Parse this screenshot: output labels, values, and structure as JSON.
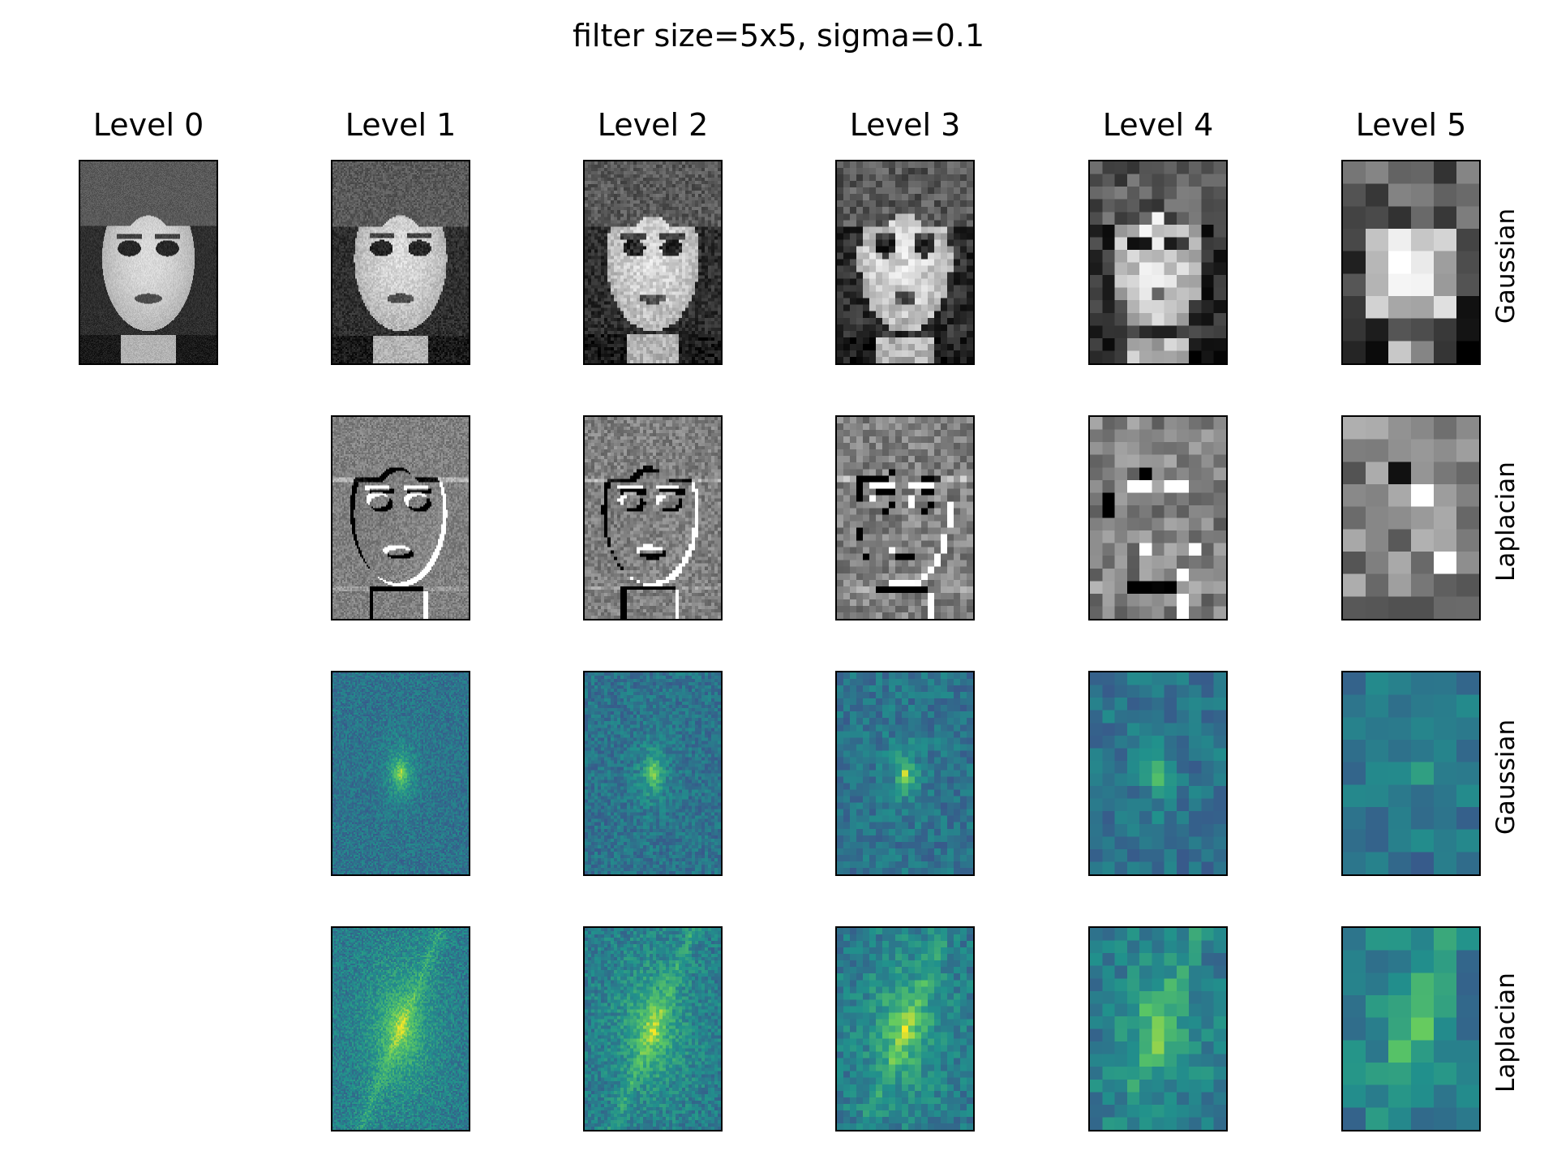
{
  "figure": {
    "title": "filter size=5x5, sigma=0.1",
    "columns": [
      "Level 0",
      "Level 1",
      "Level 2",
      "Level 3",
      "Level 4",
      "Level 5"
    ],
    "rows": [
      {
        "label": "Gaussian",
        "kind": "image",
        "colormap": "gray",
        "levels": [
          0,
          1,
          2,
          3,
          4,
          5
        ]
      },
      {
        "label": "Laplacian",
        "kind": "image",
        "colormap": "gray",
        "levels": [
          1,
          2,
          3,
          4,
          5
        ]
      },
      {
        "label": "Gaussian",
        "kind": "spectrum",
        "colormap": "viridis",
        "levels": [
          1,
          2,
          3,
          4,
          5
        ]
      },
      {
        "label": "Laplacian",
        "kind": "spectrum",
        "colormap": "viridis",
        "levels": [
          1,
          2,
          3,
          4,
          5
        ]
      }
    ],
    "content": "face portrait, grayscale pyramid and log-magnitude Fourier spectra",
    "colors": {
      "frame": "#000000",
      "background": "#ffffff"
    }
  }
}
